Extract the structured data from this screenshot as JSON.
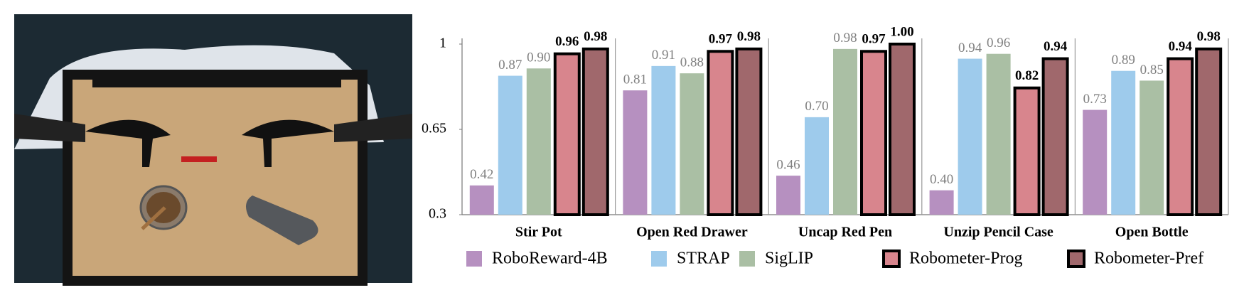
{
  "chart_data": {
    "type": "bar",
    "categories": [
      "Stir Pot",
      "Open Red Drawer",
      "Uncap Red Pen",
      "Unzip Pencil Case",
      "Open Bottle"
    ],
    "ylim": [
      0.3,
      1
    ],
    "yticks": [
      0.3,
      0.65,
      1
    ],
    "series": [
      {
        "name": "RoboReward-4B",
        "color": "#b690c0",
        "label_color": "#808080",
        "values": [
          0.42,
          0.81,
          0.46,
          0.4,
          0.73
        ],
        "value_labels": [
          "0.42",
          "0.81",
          "0.46",
          "0.40",
          "0.73"
        ]
      },
      {
        "name": "STRAP",
        "color": "#9ecbec",
        "label_color": "#808080",
        "values": [
          0.87,
          0.91,
          0.7,
          0.94,
          0.89
        ],
        "value_labels": [
          "0.87",
          "0.91",
          "0.70",
          "0.94",
          "0.89"
        ]
      },
      {
        "name": "SigLIP",
        "color": "#aabfa4",
        "label_color": "#808080",
        "values": [
          0.9,
          0.88,
          0.98,
          0.96,
          0.85
        ],
        "value_labels": [
          "0.90",
          "0.88",
          "0.98",
          "0.96",
          "0.85"
        ]
      },
      {
        "name": "Robometer-Prog",
        "color": "#d8858d",
        "edgecolor": "#000000",
        "label_color": "#000000",
        "values": [
          0.96,
          0.97,
          0.97,
          0.82,
          0.94
        ],
        "value_labels": [
          "0.96",
          "0.97",
          "0.97",
          "0.82",
          "0.94"
        ]
      },
      {
        "name": "Robometer-Pref",
        "color": "#a0686c",
        "edgecolor": "#000000",
        "label_color": "#000000",
        "values": [
          0.98,
          0.98,
          1.0,
          0.94,
          0.98
        ],
        "value_labels": [
          "0.98",
          "0.98",
          "1.00",
          "0.94",
          "0.98"
        ]
      }
    ]
  }
}
